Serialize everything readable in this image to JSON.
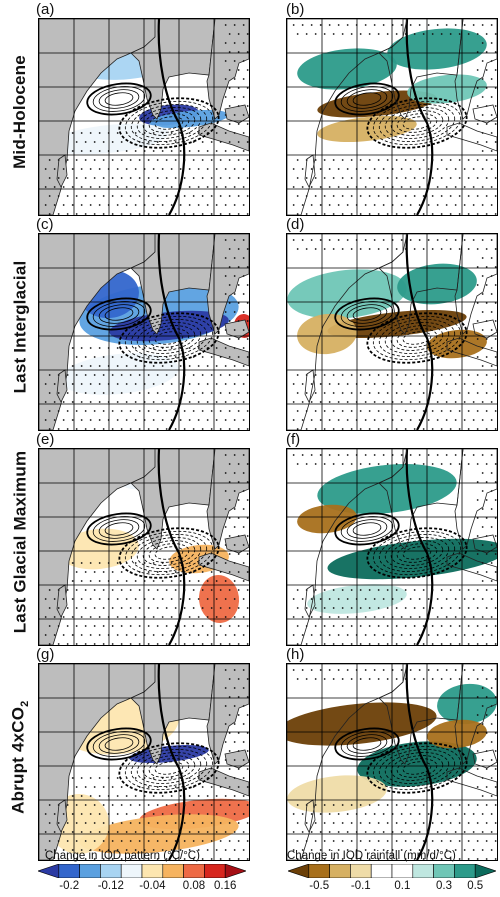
{
  "rows": [
    {
      "title": "Mid-Holocene",
      "left_tag": "(a)",
      "right_tag": "(b)"
    },
    {
      "title": "Last Interglacial",
      "left_tag": "(c)",
      "right_tag": "(d)"
    },
    {
      "title": "Last Glacial Maximum",
      "left_tag": "(e)",
      "right_tag": "(f)"
    },
    {
      "title_main": "Abrupt 4xCO",
      "title_sub": "2",
      "left_tag": "(g)",
      "right_tag": "(h)"
    }
  ],
  "colorbars": {
    "left": {
      "title": "Change in IOD pattern (°C/°C)",
      "ticks": [
        "-0.2",
        "-0.12",
        "-0.04",
        "0.08",
        "0.16"
      ],
      "colors": [
        "#2b3aa3",
        "#3366cc",
        "#5aa0e0",
        "#a8d4f2",
        "#eef6fb",
        "#fde6b0",
        "#f6b35f",
        "#ee6a45",
        "#d7261e",
        "#a50f15"
      ]
    },
    "right": {
      "title": "Change in IOD rainfall (mm/d/°C)",
      "ticks": [
        "-0.5",
        "-0.1",
        "0.1",
        "0.3",
        "0.5"
      ],
      "colors": [
        "#6b3f07",
        "#a8701c",
        "#d6b062",
        "#efdca8",
        "#ffffff",
        "#ffffff",
        "#bfe7e0",
        "#6fc6b6",
        "#2c9b8a",
        "#0c6b5c"
      ]
    }
  }
}
